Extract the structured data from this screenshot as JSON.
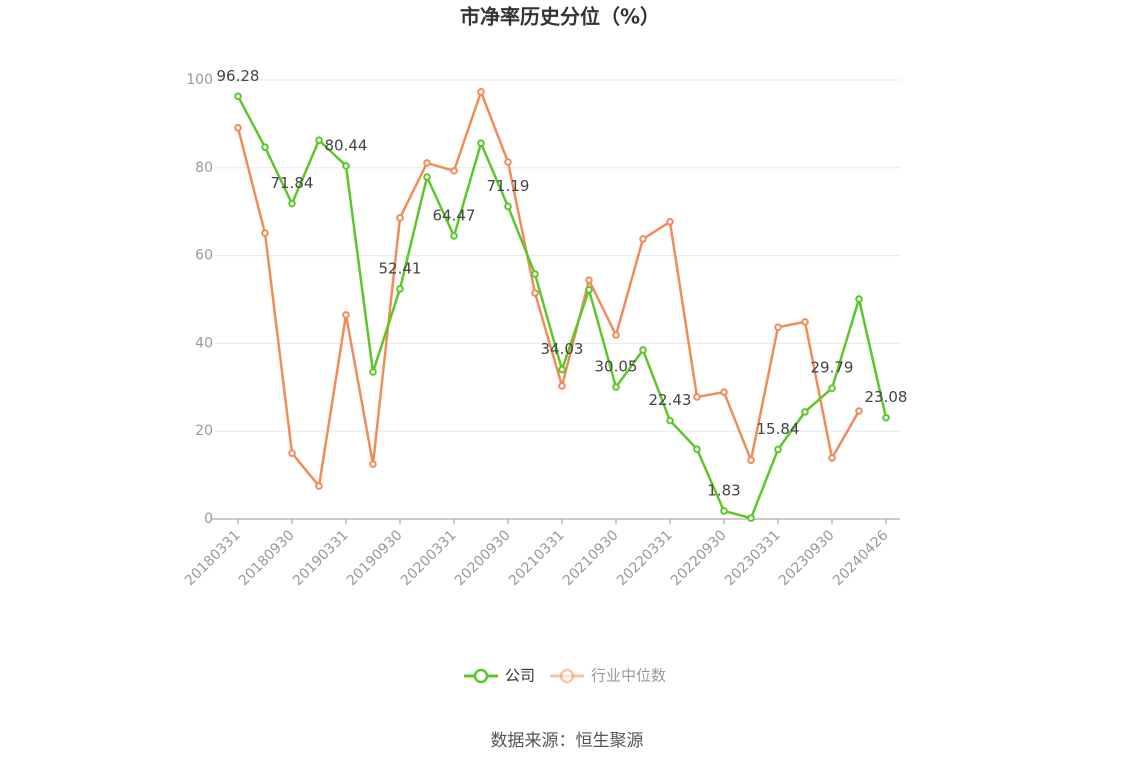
{
  "chart_data": {
    "type": "line",
    "title": "市净率历史分位（%）",
    "categories": [
      "20180331",
      null,
      "20180930",
      null,
      "20190331",
      null,
      "20190930",
      null,
      "20200331",
      null,
      "20200930",
      null,
      "20210331",
      null,
      "20210930",
      null,
      "20220331",
      null,
      "20220930",
      null,
      "20230331",
      null,
      "20230930",
      null,
      "20240426"
    ],
    "series": [
      {
        "name": "公司",
        "color": "#5cc72a",
        "values": [
          96.28,
          84.7,
          71.84,
          86.3,
          80.44,
          33.5,
          52.41,
          77.9,
          64.47,
          85.6,
          71.19,
          55.8,
          34.03,
          52.2,
          30.05,
          38.5,
          22.43,
          15.9,
          1.83,
          0.2,
          15.84,
          24.4,
          29.79,
          50.1,
          23.08
        ]
      },
      {
        "name": "行业中位数",
        "color": "#f08c5a",
        "values": [
          89.1,
          65.1,
          15.0,
          7.5,
          46.5,
          12.5,
          68.6,
          81.1,
          79.3,
          97.3,
          81.3,
          51.5,
          30.3,
          54.4,
          41.9,
          63.8,
          67.7,
          27.8,
          28.9,
          13.4,
          43.7,
          44.9,
          13.9,
          24.6,
          null
        ]
      }
    ],
    "ylim": [
      0,
      100
    ],
    "yticks": [
      0,
      20,
      40,
      60,
      80,
      100
    ],
    "grid": true,
    "source": "数据来源：恒生聚源"
  }
}
